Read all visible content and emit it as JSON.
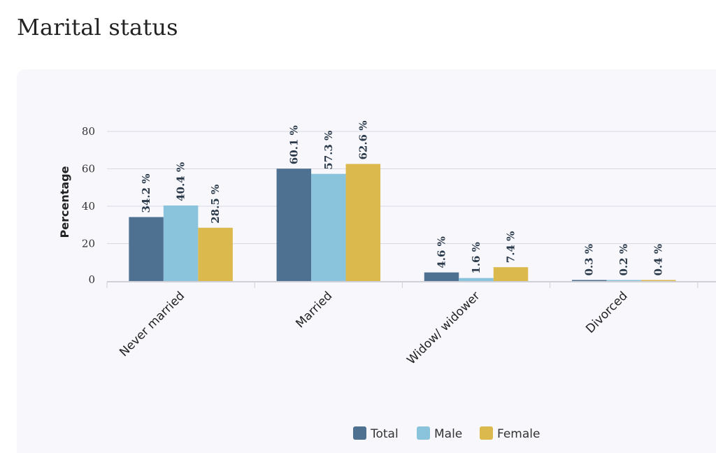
{
  "page": {
    "title": "Marital status"
  },
  "chart_data": {
    "type": "bar",
    "ylabel": "Percentage",
    "ylim": [
      0,
      80
    ],
    "yticks": [
      0,
      20,
      40,
      60,
      80
    ],
    "categories": [
      "Never married",
      "Married",
      "Widow/ widower",
      "Divorced"
    ],
    "series": [
      {
        "name": "Total",
        "color": "#4e7091",
        "values": [
          34.2,
          60.1,
          4.6,
          0.3
        ],
        "labels": [
          "34.2 %",
          "60.1 %",
          "4.6 %",
          "0.3 %"
        ]
      },
      {
        "name": "Male",
        "color": "#8ac3dc",
        "values": [
          40.4,
          57.3,
          1.6,
          0.2
        ],
        "labels": [
          "40.4 %",
          "57.3 %",
          "1.6 %",
          "0.2 %"
        ]
      },
      {
        "name": "Female",
        "color": "#dbb94d",
        "values": [
          28.5,
          62.6,
          7.4,
          0.4
        ],
        "labels": [
          "28.5 %",
          "62.6 %",
          "7.4 %",
          "0.4 %"
        ]
      }
    ],
    "grid": true,
    "legend_position": "bottom-center"
  }
}
